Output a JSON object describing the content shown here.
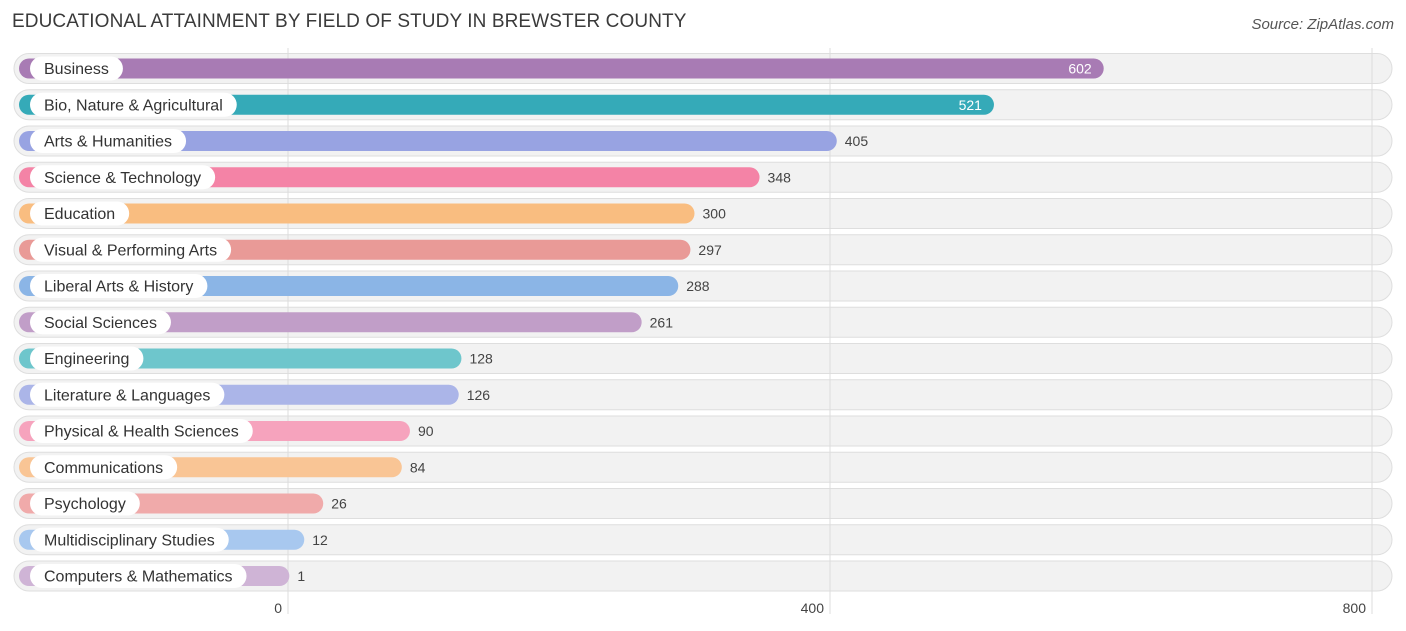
{
  "title": "EDUCATIONAL ATTAINMENT BY FIELD OF STUDY IN BREWSTER COUNTY",
  "source": "Source: ZipAtlas.com",
  "chart_data": {
    "type": "bar",
    "orientation": "horizontal",
    "title": "EDUCATIONAL ATTAINMENT BY FIELD OF STUDY IN BREWSTER COUNTY",
    "xlabel": "",
    "ylabel": "",
    "xlim": [
      0,
      800
    ],
    "ticks": [
      0,
      400,
      800
    ],
    "tick_labels": [
      "0",
      "400",
      "800"
    ],
    "grid": true,
    "categories": [
      "Business",
      "Bio, Nature & Agricultural",
      "Arts & Humanities",
      "Science & Technology",
      "Education",
      "Visual & Performing Arts",
      "Liberal Arts & History",
      "Social Sciences",
      "Engineering",
      "Literature & Languages",
      "Physical & Health Sciences",
      "Communications",
      "Psychology",
      "Multidisciplinary Studies",
      "Computers & Mathematics"
    ],
    "values": [
      602,
      521,
      405,
      348,
      300,
      297,
      288,
      261,
      128,
      126,
      90,
      84,
      26,
      12,
      1
    ],
    "value_labels": [
      "602",
      "521",
      "405",
      "348",
      "300",
      "297",
      "288",
      "261",
      "128",
      "126",
      "90",
      "84",
      "26",
      "12",
      "1"
    ],
    "colors": [
      "#a87bb4",
      "#35aab8",
      "#98a3e2",
      "#f483a6",
      "#f9bd80",
      "#e99a97",
      "#8bb5e6",
      "#c19ec8",
      "#6ec6cc",
      "#abb5e8",
      "#f6a3bd",
      "#f9c595",
      "#f0aaaa",
      "#a8c8ef",
      "#cfb4d6"
    ]
  }
}
